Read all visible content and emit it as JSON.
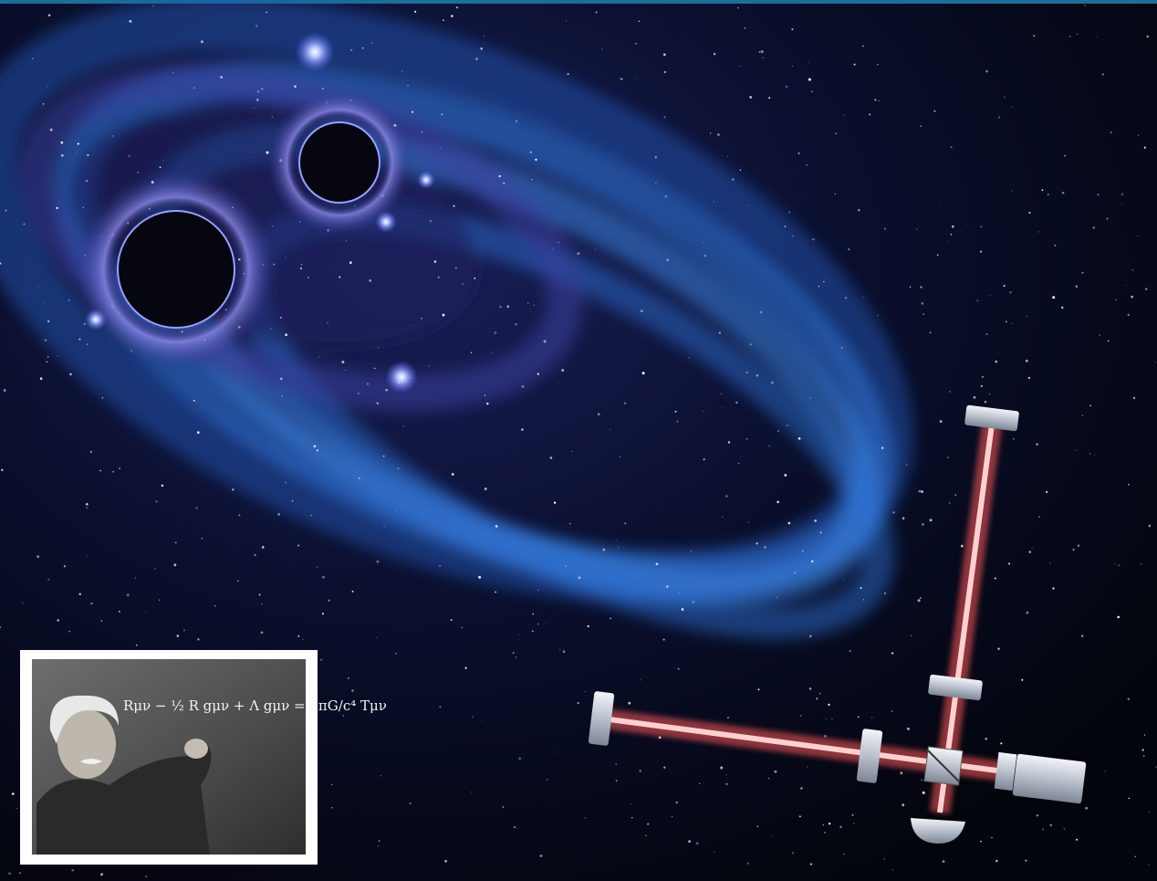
{
  "inset": {
    "equation": "Rμν − ½ R gμν + Λ gμν = 8πG/c⁴ Tμν"
  }
}
